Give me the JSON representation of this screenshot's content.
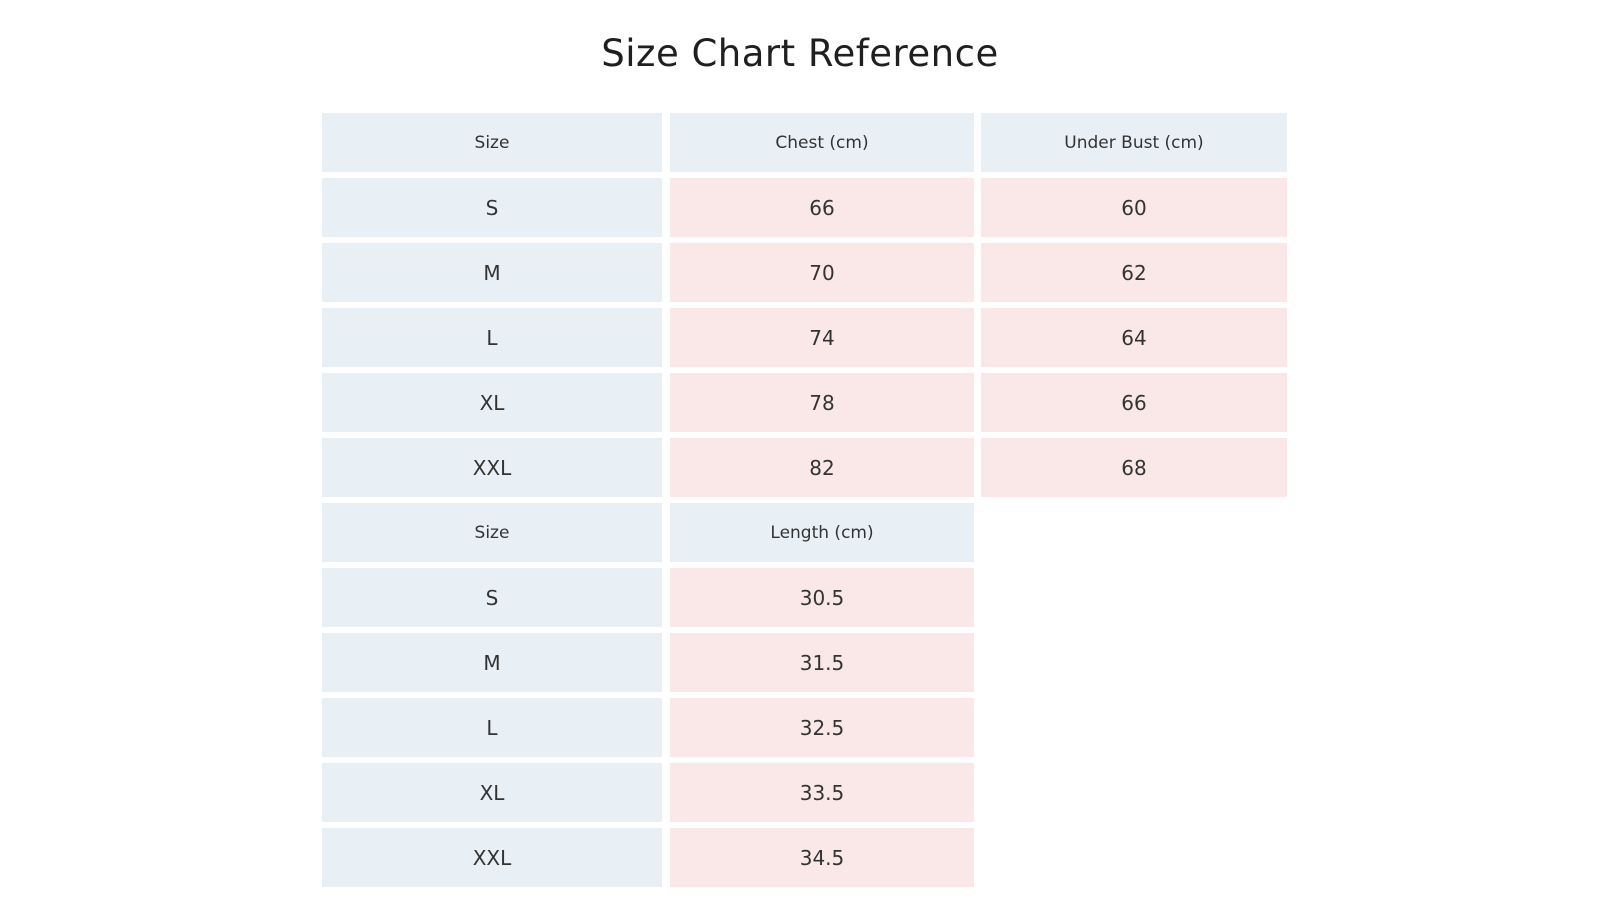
{
  "title": "Size Chart Reference",
  "colors": {
    "header_bg": "#e8eff5",
    "size_bg": "#e8eff5",
    "value_bg": "#fae8e9"
  },
  "table1": {
    "headers": [
      "Size",
      "Chest (cm)",
      "Under Bust (cm)"
    ],
    "rows": [
      [
        "S",
        "66",
        "60"
      ],
      [
        "M",
        "70",
        "62"
      ],
      [
        "L",
        "74",
        "64"
      ],
      [
        "XL",
        "78",
        "66"
      ],
      [
        "XXL",
        "82",
        "68"
      ]
    ]
  },
  "table2": {
    "headers": [
      "Size",
      "Length (cm)"
    ],
    "rows": [
      [
        "S",
        "30.5"
      ],
      [
        "M",
        "31.5"
      ],
      [
        "L",
        "32.5"
      ],
      [
        "XL",
        "33.5"
      ],
      [
        "XXL",
        "34.5"
      ]
    ]
  }
}
